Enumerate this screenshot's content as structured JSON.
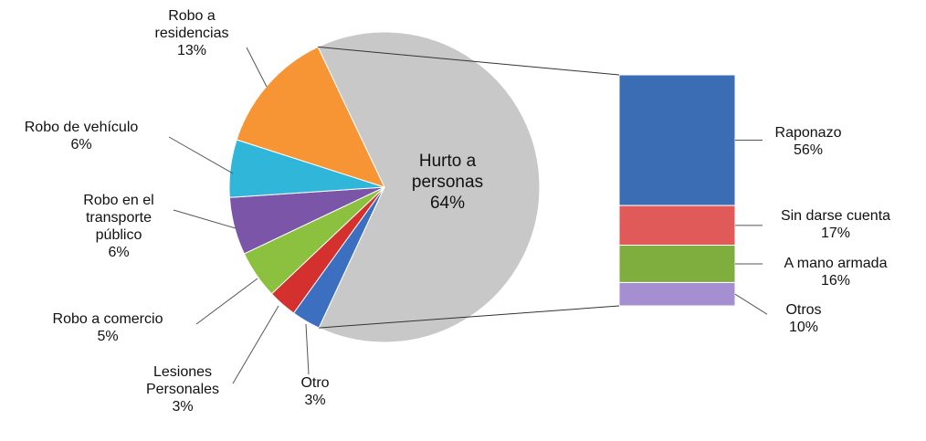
{
  "chart_data": {
    "type": "pie",
    "categories": [
      "Hurto a personas",
      "Otro",
      "Lesiones Personales",
      "Robo a comercio",
      "Robo en el transporte público",
      "Robo de vehículo",
      "Robo a residencias"
    ],
    "values": [
      64,
      3,
      3,
      5,
      6,
      6,
      13
    ],
    "value_labels": [
      "64%",
      "3%",
      "3%",
      "5%",
      "6%",
      "6%",
      "13%"
    ],
    "colors": [
      "#c8c8c8",
      "#3d6fc0",
      "#d4312e",
      "#8cc13f",
      "#7a55a8",
      "#2fb6d9",
      "#f79433"
    ],
    "breakdown": {
      "categories": [
        "Raponazo",
        "Sin darse cuenta",
        "A mano armada",
        "Otros"
      ],
      "values": [
        56,
        17,
        16,
        10
      ],
      "value_labels": [
        "56%",
        "17%",
        "16%",
        "10%"
      ],
      "colors": [
        "#3a6db3",
        "#e05a5a",
        "#7fae3e",
        "#a58fd0"
      ]
    }
  }
}
